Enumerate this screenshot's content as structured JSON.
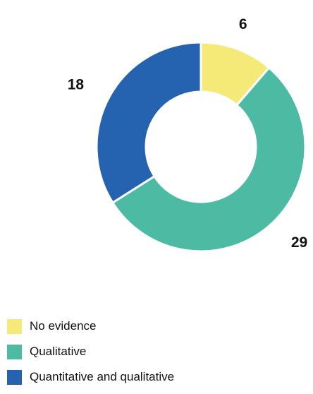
{
  "chart_data": {
    "type": "pie",
    "subtype": "donut",
    "categories": [
      "No evidence",
      "Qualitative",
      "Quantitative and qualitative"
    ],
    "values": [
      6,
      29,
      18
    ],
    "data_labels": [
      "6",
      "29",
      "18"
    ],
    "colors": [
      "#F5EA78",
      "#4DBBA3",
      "#2563B0"
    ],
    "title": "",
    "legend_position": "bottom-left"
  },
  "legend": {
    "items": [
      {
        "label": "No evidence",
        "color": "#F5EA78"
      },
      {
        "label": "Qualitative",
        "color": "#4DBBA3"
      },
      {
        "label": "Quantitative and qualitative",
        "color": "#2563B0"
      }
    ]
  }
}
